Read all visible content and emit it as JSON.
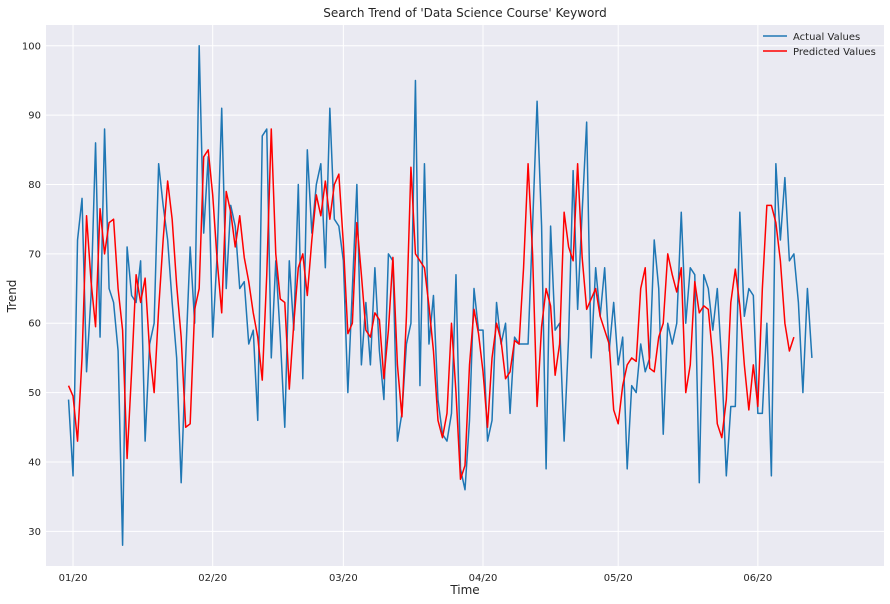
{
  "chart_data": {
    "type": "line",
    "title": "Search Trend of 'Data Science Course' Keyword",
    "xlabel": "Time",
    "ylabel": "Trend",
    "xlim": [
      "2019-12-26",
      "2020-06-29"
    ],
    "ylim": [
      25,
      103
    ],
    "grid": true,
    "legend_position": "top-right",
    "x_ticks": [
      {
        "date": "2020-01-01",
        "label": "01/20"
      },
      {
        "date": "2020-02-01",
        "label": "02/20"
      },
      {
        "date": "2020-03-01",
        "label": "03/20"
      },
      {
        "date": "2020-04-01",
        "label": "04/20"
      },
      {
        "date": "2020-05-01",
        "label": "05/20"
      },
      {
        "date": "2020-06-01",
        "label": "06/20"
      }
    ],
    "y_ticks": [
      30,
      40,
      50,
      60,
      70,
      80,
      90,
      100
    ],
    "series": [
      {
        "name": "Actual Values",
        "color": "#1f77b4",
        "start_date": "2019-12-31",
        "values": [
          49,
          38,
          72,
          78,
          53,
          64,
          86,
          58,
          88,
          65,
          63,
          56,
          28,
          71,
          64,
          63,
          69,
          43,
          57,
          60,
          83,
          77,
          72,
          63,
          55,
          37,
          55,
          71,
          60,
          100,
          73,
          84,
          58,
          70,
          91,
          65,
          77,
          74,
          65,
          66,
          57,
          59,
          46,
          87,
          88,
          55,
          69,
          58,
          45,
          69,
          59,
          80,
          52,
          85,
          73,
          80,
          83,
          68,
          91,
          75,
          74,
          69,
          50,
          65,
          80,
          54,
          63,
          54,
          68,
          56,
          49,
          70,
          69,
          43,
          47,
          57,
          60,
          95,
          51,
          83,
          57,
          64,
          49,
          44,
          43,
          47,
          67,
          39,
          36,
          46,
          65,
          59,
          59,
          43,
          46,
          63,
          57,
          60,
          47,
          58,
          57,
          57,
          57,
          74,
          92,
          74,
          39,
          74,
          59,
          60,
          43,
          58,
          82,
          62,
          76,
          89,
          55,
          68,
          61,
          68,
          56,
          63,
          54,
          58,
          39,
          51,
          50,
          57,
          53,
          55,
          72,
          65,
          44,
          60,
          57,
          60,
          76,
          60,
          68,
          67,
          37,
          67,
          65,
          59,
          65,
          54,
          38,
          48,
          48,
          76,
          61,
          65,
          64,
          47,
          47,
          60,
          38,
          83,
          72,
          81,
          69,
          70,
          63,
          50,
          65,
          55
        ],
        "predicted_values_note": ""
      },
      {
        "name": "Predicted Values",
        "color": "#ff0000",
        "start_date": "2019-12-31",
        "values": [
          51,
          49.5,
          43,
          55,
          75.5,
          66,
          59.5,
          76.5,
          70,
          74.5,
          75,
          65,
          59,
          40.5,
          53,
          67,
          63,
          66.5,
          56,
          50,
          62,
          72,
          80.5,
          75,
          65.5,
          58,
          45,
          45.5,
          62,
          65,
          84,
          85,
          78.5,
          69,
          61.5,
          79,
          76,
          71,
          75.5,
          69.5,
          66,
          61.5,
          58,
          51.8,
          67,
          88,
          70,
          63.5,
          63,
          50.5,
          60,
          68,
          70,
          64,
          72,
          78.5,
          75.5,
          80.5,
          75,
          80,
          81.5,
          71.5,
          58.5,
          60,
          74.5,
          67,
          59,
          58,
          61.5,
          60.5,
          52,
          59,
          69.5,
          54,
          46.5,
          61,
          82.5,
          70,
          69,
          68,
          62.5,
          56,
          46,
          43.5,
          47,
          60,
          50,
          37.5,
          39.5,
          54,
          62,
          58.5,
          53,
          45,
          55,
          60,
          57.5,
          52,
          53,
          57.5,
          57,
          68,
          83,
          70,
          48,
          59.5,
          65,
          62.5,
          52.5,
          57,
          76,
          71,
          69,
          83,
          69.5,
          62,
          63.5,
          65,
          61,
          59,
          57,
          47.5,
          45.5,
          51,
          54,
          55,
          54.5,
          65,
          68,
          53.5,
          53,
          58,
          60,
          70,
          67,
          64.5,
          68,
          50,
          54,
          66,
          61.5,
          62.5,
          62,
          55,
          45.5,
          43.5,
          49,
          63,
          67.8,
          62.5,
          54,
          47.5,
          54,
          48,
          65,
          77,
          77,
          74.5,
          69,
          60,
          56,
          58
        ]
      }
    ]
  }
}
